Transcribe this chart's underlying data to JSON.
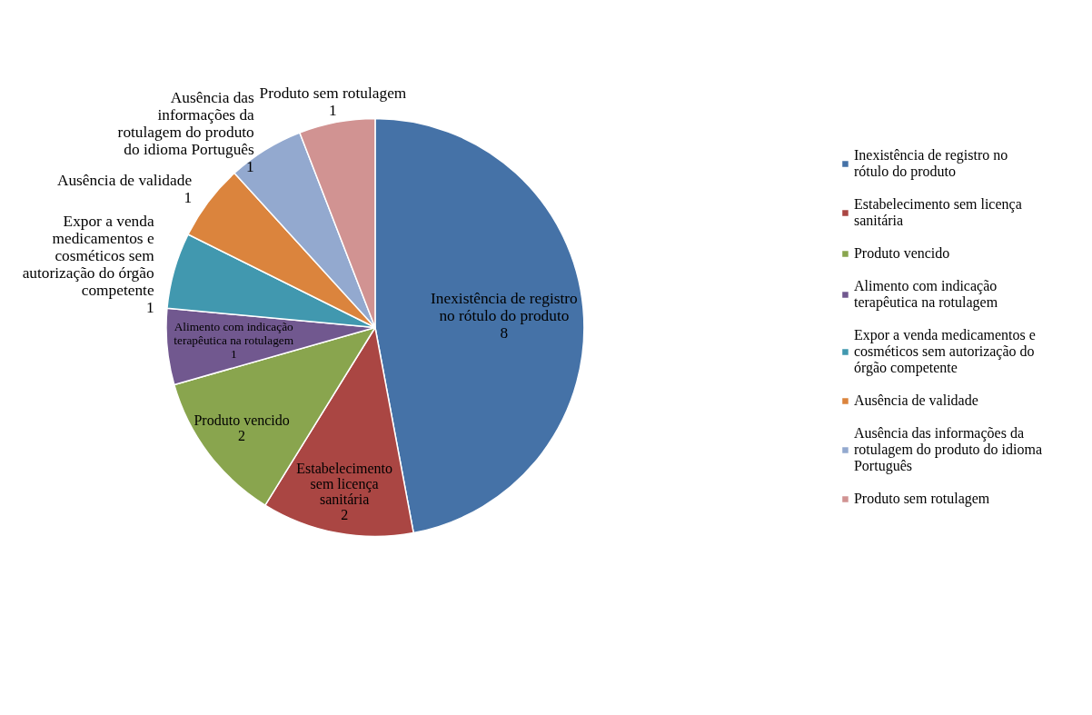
{
  "chart_data": {
    "type": "pie",
    "categories": [
      "Inexistência de registro no rótulo do produto",
      "Estabelecimento sem licença sanitária",
      "Produto vencido",
      "Alimento com indicação terapêutica na rotulagem",
      "Expor a venda medicamentos e cosméticos sem autorização do órgão competente",
      "Ausência de validade",
      "Ausência das informações da rotulagem do produto do idioma Português",
      "Produto sem rotulagem"
    ],
    "values": [
      8,
      2,
      2,
      1,
      1,
      1,
      1,
      1
    ],
    "colors": [
      "#4572a7",
      "#aa4643",
      "#89a54e",
      "#71588f",
      "#4198af",
      "#db843d",
      "#93a9cf",
      "#d19392"
    ],
    "data_labels": true,
    "legend": "right"
  }
}
